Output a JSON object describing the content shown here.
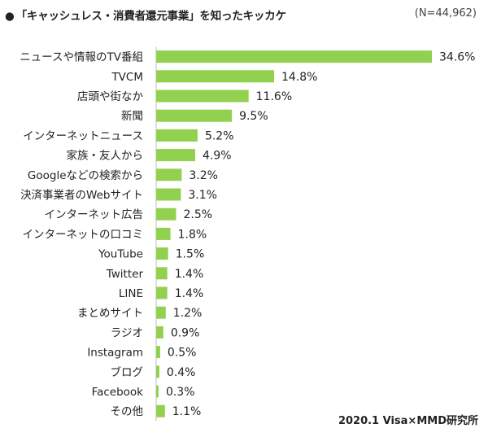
{
  "header": {
    "bullet": "●",
    "title": "「キャッシュレス・消費者還元事業」を知ったキッカケ",
    "sample_size": "(N=44,962)"
  },
  "footer": {
    "source": "2020.1 Visa×MMD研究所"
  },
  "colors": {
    "bar": "#92d050",
    "axis": "#bfbfbf",
    "text": "#222222"
  },
  "chart_data": {
    "type": "bar",
    "orientation": "horizontal",
    "title": "「キャッシュレス・消費者還元事業」を知ったキッカケ",
    "categories": [
      "ニュースや情報のTV番組",
      "TVCM",
      "店頭や街なか",
      "新聞",
      "インターネットニュース",
      "家族・友人から",
      "Googleなどの検索から",
      "決済事業者のWebサイト",
      "インターネット広告",
      "インターネットの口コミ",
      "YouTube",
      "Twitter",
      "LINE",
      "まとめサイト",
      "ラジオ",
      "Instagram",
      "ブログ",
      "Facebook",
      "その他"
    ],
    "values": [
      34.6,
      14.8,
      11.6,
      9.5,
      5.2,
      4.9,
      3.2,
      3.1,
      2.5,
      1.8,
      1.5,
      1.4,
      1.4,
      1.2,
      0.9,
      0.5,
      0.4,
      0.3,
      1.1
    ],
    "value_labels": [
      "34.6%",
      "14.8%",
      "11.6%",
      "9.5%",
      "5.2%",
      "4.9%",
      "3.2%",
      "3.1%",
      "2.5%",
      "1.8%",
      "1.5%",
      "1.4%",
      "1.4%",
      "1.2%",
      "0.9%",
      "0.5%",
      "0.4%",
      "0.3%",
      "1.1%"
    ],
    "unit": "%",
    "xlim": [
      0,
      34.6
    ],
    "grid": false,
    "legend": false
  }
}
